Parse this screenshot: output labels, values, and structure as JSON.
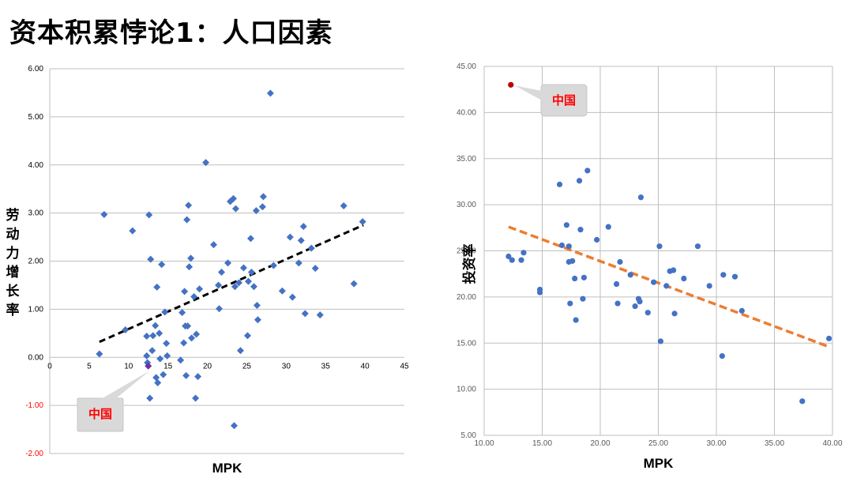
{
  "page": {
    "title": "资本积累悖论1：人口因素"
  },
  "colors": {
    "points": "#4472C4",
    "left_trend": "#000000",
    "right_trend": "#ED7D31",
    "china_left": "#7030A0",
    "china_right": "#C00000",
    "negative_ticks": "#FF0000",
    "callout_fill": "#D9D9D9",
    "callout_text": "#FF0000",
    "grid": "#BFBFBF"
  },
  "chart_data": [
    {
      "type": "scatter",
      "title": "",
      "xlabel": "MPK",
      "ylabel": "劳动力增长率",
      "xlim": [
        0,
        45
      ],
      "ylim": [
        -2,
        6
      ],
      "x_ticks": [
        "0",
        "5",
        "10",
        "15",
        "20",
        "25",
        "30",
        "35",
        "40",
        "45"
      ],
      "y_ticks": [
        "-2.00",
        "-1.00",
        "0.00",
        "1.00",
        "2.00",
        "3.00",
        "4.00",
        "5.00",
        "6.00"
      ],
      "marker": "diamond",
      "grid": true,
      "trendline": {
        "style": "dashed",
        "from": [
          6.3,
          0.32
        ],
        "to": [
          39.8,
          2.75
        ]
      },
      "highlight": {
        "label": "中国",
        "x": 12.5,
        "y": -0.18
      },
      "points": [
        [
          6.3,
          0.07
        ],
        [
          6.9,
          2.97
        ],
        [
          9.6,
          0.57
        ],
        [
          10.5,
          2.63
        ],
        [
          12.3,
          0.44
        ],
        [
          12.3,
          0.03
        ],
        [
          12.4,
          -0.11
        ],
        [
          12.6,
          2.96
        ],
        [
          12.7,
          -0.85
        ],
        [
          12.8,
          2.04
        ],
        [
          13.0,
          0.14
        ],
        [
          13.1,
          0.45
        ],
        [
          13.4,
          0.66
        ],
        [
          13.5,
          -0.42
        ],
        [
          13.6,
          1.46
        ],
        [
          13.7,
          -0.53
        ],
        [
          13.9,
          0.5
        ],
        [
          14.0,
          -0.03
        ],
        [
          14.2,
          1.93
        ],
        [
          14.4,
          -0.36
        ],
        [
          14.6,
          0.94
        ],
        [
          14.8,
          0.29
        ],
        [
          14.9,
          0.03
        ],
        [
          16.6,
          -0.06
        ],
        [
          16.8,
          0.93
        ],
        [
          17.0,
          0.3
        ],
        [
          17.1,
          1.37
        ],
        [
          17.2,
          0.65
        ],
        [
          17.3,
          -0.38
        ],
        [
          17.4,
          2.86
        ],
        [
          17.5,
          0.65
        ],
        [
          17.6,
          3.16
        ],
        [
          17.7,
          1.88
        ],
        [
          17.9,
          2.06
        ],
        [
          18.0,
          0.4
        ],
        [
          18.3,
          1.26
        ],
        [
          18.5,
          -0.85
        ],
        [
          18.6,
          0.48
        ],
        [
          18.8,
          -0.4
        ],
        [
          19.0,
          1.42
        ],
        [
          19.8,
          4.05
        ],
        [
          20.8,
          2.34
        ],
        [
          21.4,
          1.5
        ],
        [
          21.5,
          1.01
        ],
        [
          21.8,
          1.77
        ],
        [
          22.6,
          1.96
        ],
        [
          22.9,
          3.24
        ],
        [
          23.3,
          3.3
        ],
        [
          23.4,
          -1.42
        ],
        [
          23.5,
          1.47
        ],
        [
          23.6,
          3.09
        ],
        [
          24.0,
          1.55
        ],
        [
          24.2,
          0.14
        ],
        [
          24.6,
          1.86
        ],
        [
          25.1,
          0.45
        ],
        [
          25.2,
          1.58
        ],
        [
          25.5,
          2.47
        ],
        [
          25.6,
          1.77
        ],
        [
          25.9,
          1.47
        ],
        [
          26.2,
          3.05
        ],
        [
          26.3,
          1.08
        ],
        [
          26.4,
          0.78
        ],
        [
          27.0,
          3.13
        ],
        [
          27.1,
          3.34
        ],
        [
          28.0,
          5.49
        ],
        [
          28.4,
          1.91
        ],
        [
          29.5,
          1.38
        ],
        [
          30.5,
          2.5
        ],
        [
          30.8,
          1.25
        ],
        [
          31.6,
          1.96
        ],
        [
          31.9,
          2.43
        ],
        [
          32.2,
          2.72
        ],
        [
          32.4,
          0.91
        ],
        [
          33.2,
          2.27
        ],
        [
          33.7,
          1.85
        ],
        [
          34.3,
          0.88
        ],
        [
          37.3,
          3.15
        ],
        [
          38.6,
          1.53
        ],
        [
          39.7,
          2.82
        ]
      ]
    },
    {
      "type": "scatter",
      "title": "",
      "xlabel": "MPK",
      "ylabel": "投资率",
      "xlim": [
        10,
        40
      ],
      "ylim": [
        5,
        45
      ],
      "x_ticks": [
        "10.00",
        "15.00",
        "20.00",
        "25.00",
        "30.00",
        "35.00",
        "40.00"
      ],
      "y_ticks": [
        "5.00",
        "10.00",
        "15.00",
        "20.00",
        "25.00",
        "30.00",
        "35.00",
        "40.00",
        "45.00"
      ],
      "marker": "circle",
      "grid": true,
      "trendline": {
        "style": "dashed",
        "from": [
          12.1,
          27.6
        ],
        "to": [
          39.7,
          14.6
        ]
      },
      "highlight": {
        "label": "中国",
        "x": 12.3,
        "y": 43.0
      },
      "points": [
        [
          12.1,
          24.4
        ],
        [
          12.4,
          24.0
        ],
        [
          13.2,
          24.0
        ],
        [
          13.4,
          24.8
        ],
        [
          14.8,
          20.8
        ],
        [
          14.8,
          20.5
        ],
        [
          16.5,
          32.2
        ],
        [
          16.7,
          25.6
        ],
        [
          17.1,
          27.8
        ],
        [
          17.3,
          25.5
        ],
        [
          17.3,
          23.8
        ],
        [
          17.4,
          19.3
        ],
        [
          17.6,
          23.9
        ],
        [
          17.8,
          22.0
        ],
        [
          17.9,
          17.5
        ],
        [
          18.2,
          32.6
        ],
        [
          18.3,
          27.3
        ],
        [
          18.5,
          19.8
        ],
        [
          18.6,
          22.1
        ],
        [
          18.9,
          33.7
        ],
        [
          19.7,
          26.2
        ],
        [
          20.7,
          27.6
        ],
        [
          21.4,
          21.4
        ],
        [
          21.5,
          19.3
        ],
        [
          21.7,
          23.8
        ],
        [
          22.6,
          22.4
        ],
        [
          23.0,
          19.0
        ],
        [
          23.3,
          19.8
        ],
        [
          23.4,
          19.5
        ],
        [
          23.5,
          30.8
        ],
        [
          24.1,
          18.3
        ],
        [
          24.6,
          21.6
        ],
        [
          25.1,
          25.5
        ],
        [
          25.2,
          15.2
        ],
        [
          25.7,
          21.2
        ],
        [
          26.0,
          22.8
        ],
        [
          26.3,
          22.9
        ],
        [
          26.4,
          18.2
        ],
        [
          27.2,
          22.0
        ],
        [
          28.4,
          25.5
        ],
        [
          29.4,
          21.2
        ],
        [
          30.5,
          13.6
        ],
        [
          30.6,
          22.4
        ],
        [
          31.6,
          22.2
        ],
        [
          32.2,
          18.5
        ],
        [
          37.4,
          8.7
        ],
        [
          39.7,
          15.5
        ]
      ]
    }
  ]
}
